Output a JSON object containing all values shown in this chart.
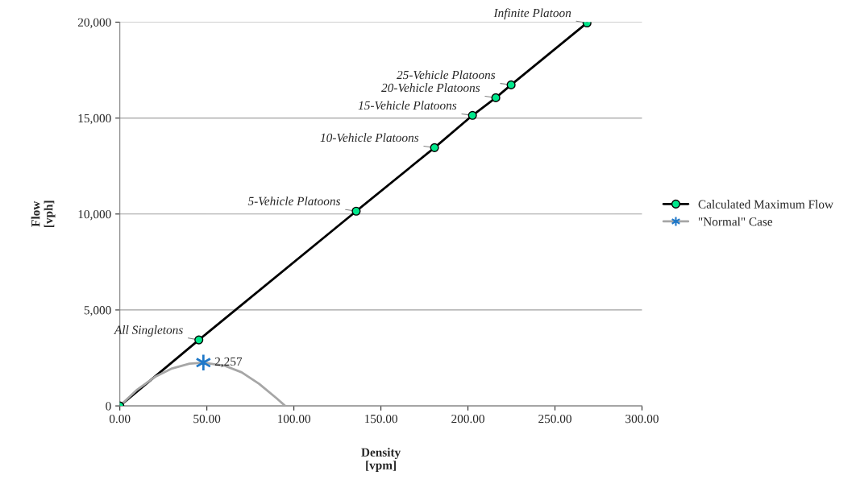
{
  "chart_data": {
    "type": "line",
    "xlabel": "Density\n[vpm]",
    "ylabel": "Flow\n[vph]",
    "xlim": [
      0,
      300
    ],
    "ylim": [
      0,
      20000
    ],
    "xticks": [
      {
        "value": 0,
        "label": "0.00"
      },
      {
        "value": 50,
        "label": "50.00"
      },
      {
        "value": 100,
        "label": "100.00"
      },
      {
        "value": 150,
        "label": "150.00"
      },
      {
        "value": 200,
        "label": "200.00"
      },
      {
        "value": 250,
        "label": "250.00"
      },
      {
        "value": 300,
        "label": "300.00"
      }
    ],
    "yticks": [
      {
        "value": 0,
        "label": "0"
      },
      {
        "value": 5000,
        "label": "5,000"
      },
      {
        "value": 10000,
        "label": "10,000"
      },
      {
        "value": 15000,
        "label": "15,000"
      },
      {
        "value": 20000,
        "label": "20,000"
      }
    ],
    "grid": "y",
    "legend": "right",
    "series": [
      {
        "name": "Calculated Maximum Flow",
        "color": "#000000",
        "x": [
          0,
          45.4,
          135.8,
          180.8,
          202.6,
          216.0,
          224.8,
          268.4
        ],
        "values": [
          0,
          3440,
          10150,
          13460,
          15140,
          16060,
          16730,
          19960
        ]
      },
      {
        "type": "scatter",
        "color": "#00e88c",
        "marker": "circle",
        "x": [
          0,
          45.4,
          135.8,
          180.8,
          202.6,
          216.0,
          224.8,
          268.4
        ],
        "values": [
          0,
          3440,
          10150,
          13460,
          15140,
          16060,
          16730,
          19960
        ]
      },
      {
        "name": "\"Normal\" Case",
        "color": "#a6a6a6",
        "x": [
          0,
          10,
          20,
          30,
          40,
          48,
          60,
          70,
          80,
          90,
          95
        ],
        "values": [
          0,
          850,
          1500,
          1950,
          2200,
          2250,
          2100,
          1750,
          1150,
          400,
          0
        ]
      },
      {
        "type": "scatter",
        "color": "#1f78c8",
        "marker": "cross",
        "x": [
          48
        ],
        "values": [
          2257
        ],
        "value_labels": [
          "2,257"
        ]
      }
    ],
    "annotations": [
      {
        "text": "All Singletons",
        "x": 45.4,
        "y": 3440
      },
      {
        "text": "5-Vehicle Platoons",
        "x": 135.8,
        "y": 10150
      },
      {
        "text": "10-Vehicle Platoons",
        "x": 180.8,
        "y": 13460
      },
      {
        "text": "15-Vehicle Platoons",
        "x": 202.6,
        "y": 15140
      },
      {
        "text": "20-Vehicle Platoons",
        "x": 216.0,
        "y": 16060
      },
      {
        "text": "25-Vehicle Platoons",
        "x": 224.8,
        "y": 16730
      },
      {
        "text": "Infinite Platoon",
        "x": 268.4,
        "y": 19960
      }
    ]
  }
}
